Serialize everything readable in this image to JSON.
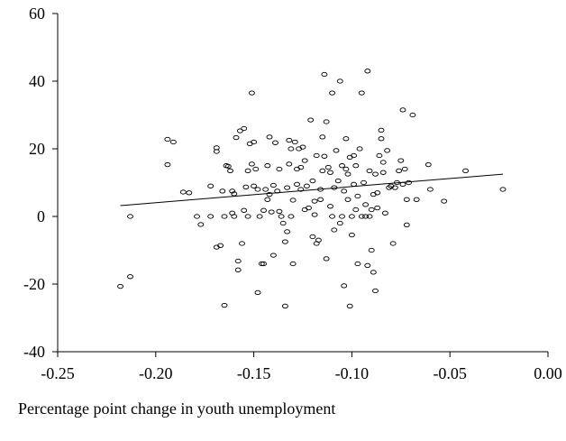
{
  "chart_data": {
    "type": "scatter",
    "title": "",
    "xlabel": "Percentage point change in youth unemployment",
    "ylabel": "",
    "xlim": [
      -0.25,
      0.0
    ],
    "ylim": [
      -40,
      60
    ],
    "x_ticks": [
      "-0.25",
      "-0.20",
      "-0.15",
      "-0.10",
      "-0.05",
      "0.00"
    ],
    "y_ticks": [
      "60",
      "40",
      "20",
      "0",
      "-20",
      "-40"
    ],
    "x_tick_values": [
      -0.25,
      -0.2,
      -0.15,
      -0.1,
      -0.05,
      0.0
    ],
    "y_tick_values": [
      60,
      40,
      20,
      0,
      -20,
      -40
    ],
    "grid": false,
    "legend": "none",
    "trend_line": {
      "x": [
        -0.218,
        -0.023
      ],
      "y": [
        3.2,
        12.5
      ]
    },
    "points": [
      [
        -0.218,
        -20.7
      ],
      [
        -0.213,
        0.0
      ],
      [
        -0.213,
        -17.8
      ],
      [
        -0.194,
        15.3
      ],
      [
        -0.194,
        22.8
      ],
      [
        -0.191,
        22.0
      ],
      [
        -0.186,
        7.2
      ],
      [
        -0.183,
        7.0
      ],
      [
        -0.179,
        0.0
      ],
      [
        -0.177,
        -2.4
      ],
      [
        -0.172,
        9.0
      ],
      [
        -0.172,
        0.0
      ],
      [
        -0.169,
        -9.1
      ],
      [
        -0.169,
        20.3
      ],
      [
        -0.169,
        19.2
      ],
      [
        -0.167,
        -8.6
      ],
      [
        -0.166,
        7.5
      ],
      [
        -0.165,
        0.0
      ],
      [
        -0.165,
        -26.3
      ],
      [
        -0.164,
        15.0
      ],
      [
        -0.163,
        14.8
      ],
      [
        -0.162,
        13.5
      ],
      [
        -0.161,
        1.0
      ],
      [
        -0.161,
        7.5
      ],
      [
        -0.16,
        6.7
      ],
      [
        -0.16,
        0.0
      ],
      [
        -0.159,
        23.3
      ],
      [
        -0.158,
        -13.2
      ],
      [
        -0.158,
        -15.8
      ],
      [
        -0.157,
        25.3
      ],
      [
        -0.156,
        -8.0
      ],
      [
        -0.155,
        1.8
      ],
      [
        -0.155,
        26.0
      ],
      [
        -0.154,
        8.7
      ],
      [
        -0.153,
        0.0
      ],
      [
        -0.153,
        13.5
      ],
      [
        -0.152,
        21.5
      ],
      [
        -0.151,
        36.5
      ],
      [
        -0.151,
        15.5
      ],
      [
        -0.15,
        9.0
      ],
      [
        -0.15,
        22.0
      ],
      [
        -0.149,
        14.0
      ],
      [
        -0.148,
        -22.5
      ],
      [
        -0.148,
        8.0
      ],
      [
        -0.147,
        0.0
      ],
      [
        -0.146,
        -14.0
      ],
      [
        -0.145,
        -14.0
      ],
      [
        -0.145,
        1.8
      ],
      [
        -0.144,
        8.0
      ],
      [
        -0.143,
        5.0
      ],
      [
        -0.143,
        15.0
      ],
      [
        -0.142,
        6.5
      ],
      [
        -0.142,
        23.5
      ],
      [
        -0.141,
        1.3
      ],
      [
        -0.14,
        -11.5
      ],
      [
        -0.14,
        9.2
      ],
      [
        -0.139,
        21.8
      ],
      [
        -0.138,
        7.5
      ],
      [
        -0.137,
        14.0
      ],
      [
        -0.137,
        1.5
      ],
      [
        -0.136,
        0.0
      ],
      [
        -0.135,
        -2.0
      ],
      [
        -0.134,
        -26.5
      ],
      [
        -0.134,
        -7.5
      ],
      [
        -0.133,
        -4.5
      ],
      [
        -0.133,
        8.5
      ],
      [
        -0.132,
        15.5
      ],
      [
        -0.132,
        22.5
      ],
      [
        -0.131,
        20.0
      ],
      [
        -0.131,
        0.0
      ],
      [
        -0.13,
        -14.0
      ],
      [
        -0.13,
        4.8
      ],
      [
        -0.129,
        22.0
      ],
      [
        -0.128,
        9.5
      ],
      [
        -0.128,
        14.0
      ],
      [
        -0.127,
        20.0
      ],
      [
        -0.126,
        14.5
      ],
      [
        -0.126,
        8.0
      ],
      [
        -0.125,
        20.5
      ],
      [
        -0.124,
        2.0
      ],
      [
        -0.124,
        16.5
      ],
      [
        -0.123,
        9.0
      ],
      [
        -0.122,
        2.5
      ],
      [
        -0.121,
        28.5
      ],
      [
        -0.12,
        -6.0
      ],
      [
        -0.12,
        10.5
      ],
      [
        -0.119,
        0.5
      ],
      [
        -0.119,
        4.5
      ],
      [
        -0.118,
        -8.0
      ],
      [
        -0.118,
        18.0
      ],
      [
        -0.117,
        -7.0
      ],
      [
        -0.116,
        5.0
      ],
      [
        -0.116,
        8.0
      ],
      [
        -0.115,
        13.5
      ],
      [
        -0.115,
        23.5
      ],
      [
        -0.114,
        17.8
      ],
      [
        -0.114,
        42.0
      ],
      [
        -0.113,
        28.0
      ],
      [
        -0.113,
        -12.5
      ],
      [
        -0.112,
        14.5
      ],
      [
        -0.111,
        3.0
      ],
      [
        -0.111,
        13.0
      ],
      [
        -0.11,
        0.0
      ],
      [
        -0.11,
        36.5
      ],
      [
        -0.109,
        -4.0
      ],
      [
        -0.109,
        8.5
      ],
      [
        -0.108,
        19.5
      ],
      [
        -0.107,
        10.5
      ],
      [
        -0.106,
        40.0
      ],
      [
        -0.106,
        -2.0
      ],
      [
        -0.105,
        15.0
      ],
      [
        -0.105,
        0.0
      ],
      [
        -0.104,
        -20.5
      ],
      [
        -0.104,
        7.5
      ],
      [
        -0.103,
        14.0
      ],
      [
        -0.103,
        23.0
      ],
      [
        -0.102,
        12.5
      ],
      [
        -0.102,
        5.0
      ],
      [
        -0.101,
        17.5
      ],
      [
        -0.101,
        -26.5
      ],
      [
        -0.1,
        0.0
      ],
      [
        -0.1,
        -5.5
      ],
      [
        -0.099,
        9.5
      ],
      [
        -0.099,
        18.0
      ],
      [
        -0.098,
        15.0
      ],
      [
        -0.098,
        2.0
      ],
      [
        -0.097,
        -14.0
      ],
      [
        -0.097,
        6.0
      ],
      [
        -0.096,
        20.0
      ],
      [
        -0.095,
        0.0
      ],
      [
        -0.095,
        36.5
      ],
      [
        -0.094,
        10.0
      ],
      [
        -0.093,
        3.5
      ],
      [
        -0.093,
        0.0
      ],
      [
        -0.092,
        -14.5
      ],
      [
        -0.092,
        43.0
      ],
      [
        -0.091,
        13.5
      ],
      [
        -0.091,
        0.0
      ],
      [
        -0.09,
        2.0
      ],
      [
        -0.09,
        -10.0
      ],
      [
        -0.089,
        6.5
      ],
      [
        -0.089,
        -16.5
      ],
      [
        -0.088,
        12.5
      ],
      [
        -0.088,
        -22.0
      ],
      [
        -0.087,
        2.5
      ],
      [
        -0.087,
        7.0
      ],
      [
        -0.086,
        18.0
      ],
      [
        -0.085,
        23.0
      ],
      [
        -0.085,
        25.5
      ],
      [
        -0.084,
        13.0
      ],
      [
        -0.084,
        16.0
      ],
      [
        -0.083,
        1.0
      ],
      [
        -0.082,
        19.5
      ],
      [
        -0.081,
        8.5
      ],
      [
        -0.08,
        9.0
      ],
      [
        -0.079,
        -8.0
      ],
      [
        -0.078,
        8.5
      ],
      [
        -0.077,
        10.0
      ],
      [
        -0.076,
        13.5
      ],
      [
        -0.075,
        16.5
      ],
      [
        -0.074,
        31.5
      ],
      [
        -0.074,
        9.5
      ],
      [
        -0.073,
        14.0
      ],
      [
        -0.072,
        -2.5
      ],
      [
        -0.072,
        5.0
      ],
      [
        -0.071,
        10.0
      ],
      [
        -0.069,
        30.0
      ],
      [
        -0.067,
        5.0
      ],
      [
        -0.061,
        15.3
      ],
      [
        -0.06,
        8.0
      ],
      [
        -0.053,
        4.5
      ],
      [
        -0.042,
        13.5
      ],
      [
        -0.023,
        8.0
      ]
    ]
  }
}
